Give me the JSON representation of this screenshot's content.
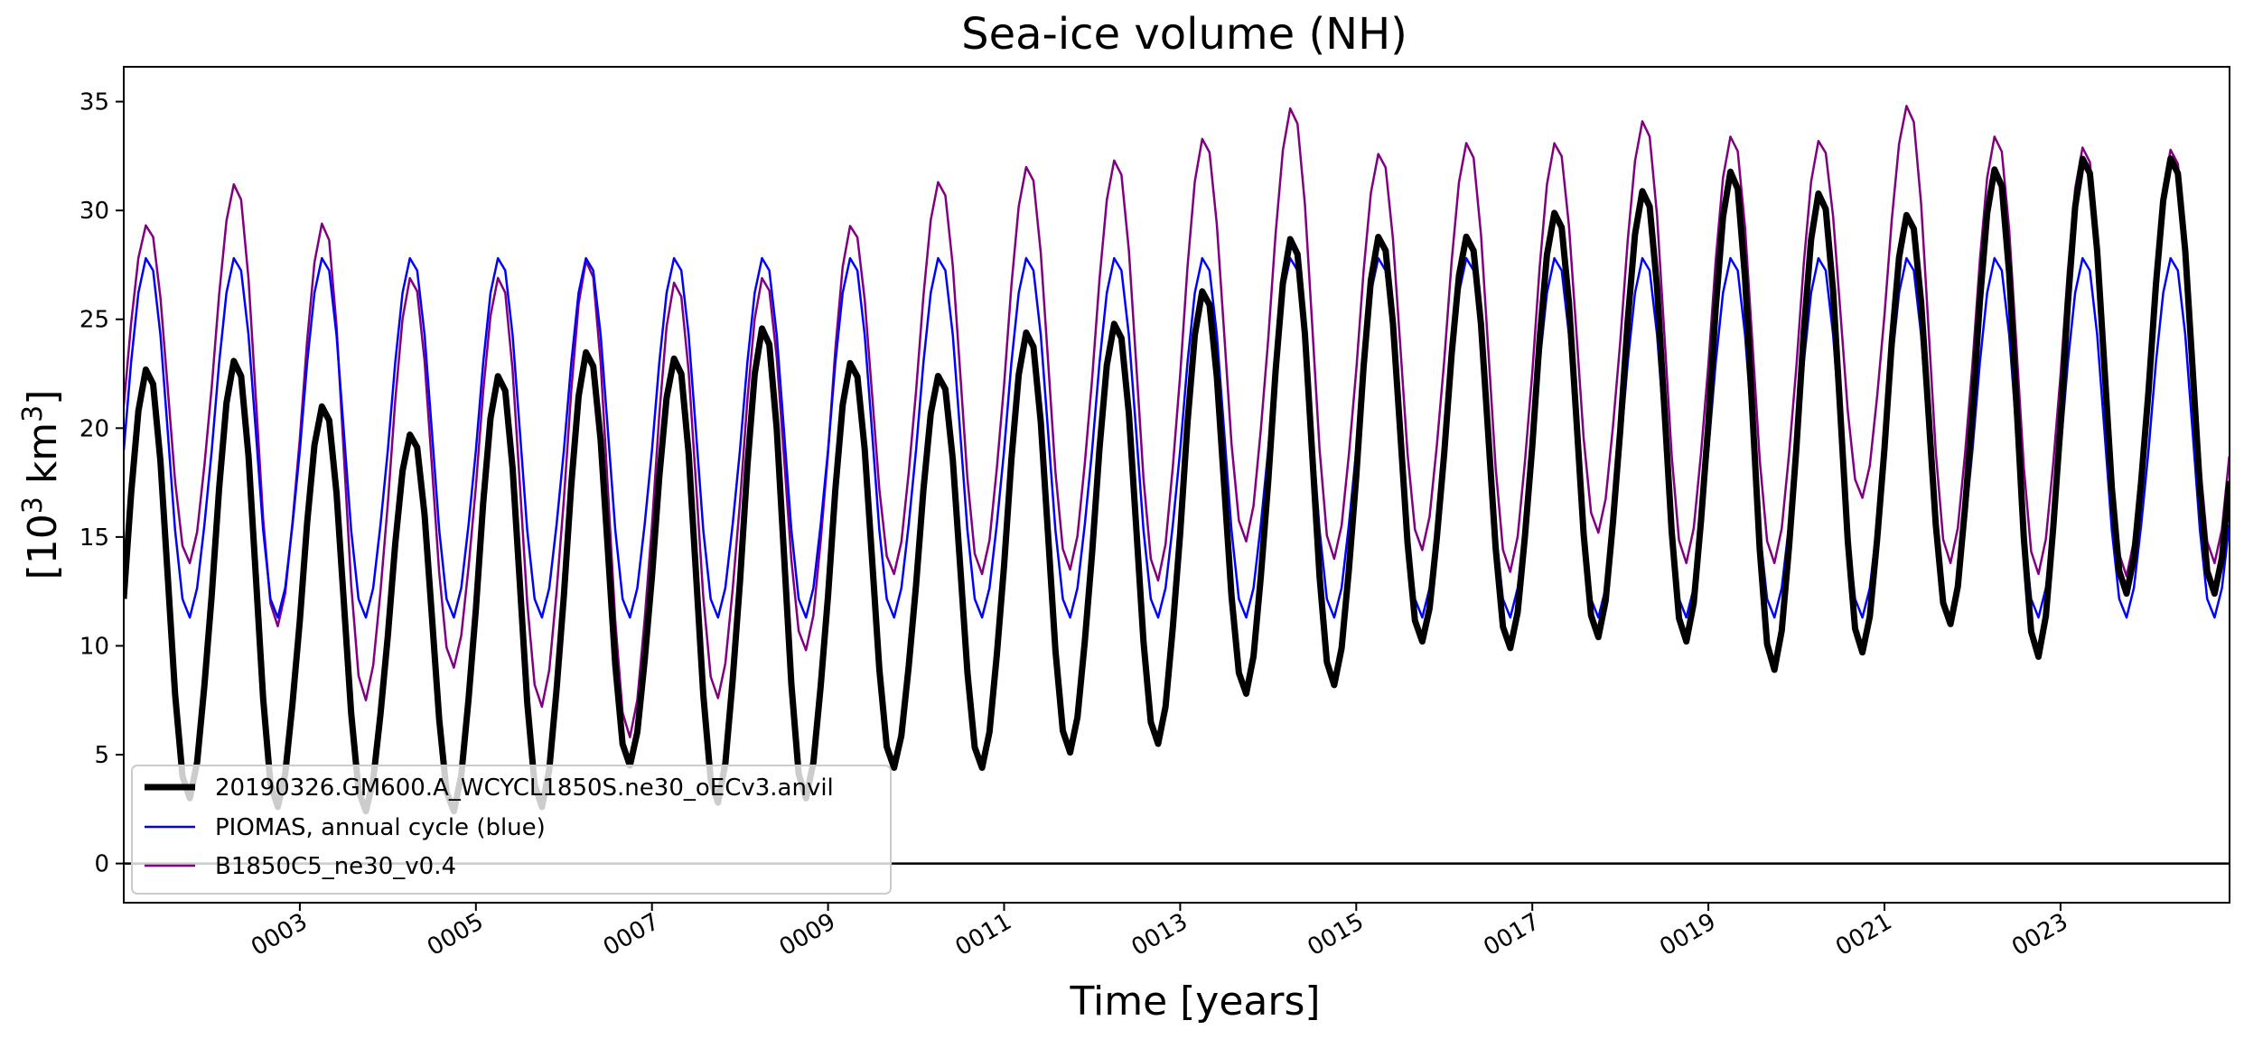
{
  "chart_data": {
    "type": "line",
    "title": "Sea-ice volume (NH)",
    "xlabel": "Time [years]",
    "ylabel": {
      "prefix": "[10",
      "exp1": "3",
      "mid": " km",
      "exp2": "3",
      "suffix": "]"
    },
    "xlim": [
      1.0,
      24.92
    ],
    "ylim": [
      -1.8,
      36.6
    ],
    "yticks": [
      0,
      5,
      10,
      15,
      20,
      25,
      30,
      35
    ],
    "xticks": [
      {
        "value": 3,
        "label": "0003"
      },
      {
        "value": 5,
        "label": "0005"
      },
      {
        "value": 7,
        "label": "0007"
      },
      {
        "value": 9,
        "label": "0009"
      },
      {
        "value": 11,
        "label": "0011"
      },
      {
        "value": 13,
        "label": "0013"
      },
      {
        "value": 15,
        "label": "0015"
      },
      {
        "value": 17,
        "label": "0017"
      },
      {
        "value": 19,
        "label": "0019"
      },
      {
        "value": 21,
        "label": "0021"
      },
      {
        "value": 23,
        "label": "0023"
      }
    ],
    "zero_line": 0,
    "legend_location": "lower-left",
    "series": [
      {
        "name": "20190326.GM600.A_WCYCL1850S.ne30_oECv3.anvil",
        "color": "#000000",
        "style": "thick",
        "annual_max": [
          22.8,
          23.2,
          21.1,
          19.8,
          22.5,
          23.6,
          23.3,
          24.7,
          23.1,
          22.5,
          24.5,
          24.9,
          26.4,
          28.8,
          28.9,
          28.9,
          30.0,
          31.0,
          31.9,
          30.9,
          29.9,
          32.0,
          32.5,
          32.5
        ],
        "annual_min": [
          3.0,
          2.6,
          2.4,
          2.4,
          2.6,
          4.5,
          2.8,
          3.0,
          4.4,
          4.4,
          5.1,
          5.5,
          7.8,
          8.2,
          10.2,
          9.9,
          10.4,
          10.2,
          8.9,
          9.7,
          11.0,
          9.5,
          12.4,
          12.4
        ]
      },
      {
        "name": "PIOMAS, annual cycle (blue)",
        "color": "#0000ff",
        "style": "thin",
        "annual_max": [
          27.9,
          27.9,
          27.9,
          27.9,
          27.9,
          27.9,
          27.9,
          27.9,
          27.9,
          27.9,
          27.9,
          27.9,
          27.9,
          27.9,
          27.9,
          27.9,
          27.9,
          27.9,
          27.9,
          27.9,
          27.9,
          27.9,
          27.9,
          27.9
        ],
        "annual_min": [
          11.3,
          11.3,
          11.3,
          11.3,
          11.3,
          11.3,
          11.3,
          11.3,
          11.3,
          11.3,
          11.3,
          11.3,
          11.3,
          11.3,
          11.3,
          11.3,
          11.3,
          11.3,
          11.3,
          11.3,
          11.3,
          11.3,
          11.3,
          11.3
        ]
      },
      {
        "name": "B1850C5_ne30_v0.4",
        "color": "#800080",
        "style": "thin",
        "annual_max": [
          29.4,
          31.3,
          29.5,
          27.0,
          27.0,
          27.8,
          26.8,
          27.0,
          29.4,
          31.4,
          32.1,
          32.4,
          33.4,
          34.8,
          32.7,
          33.2,
          33.2,
          34.2,
          33.5,
          33.3,
          34.9,
          33.5,
          33.0,
          32.9
        ],
        "annual_min": [
          13.8,
          10.9,
          7.5,
          9.0,
          7.2,
          5.8,
          7.6,
          9.8,
          13.3,
          13.3,
          13.5,
          13.0,
          14.8,
          14.0,
          14.4,
          13.4,
          15.2,
          13.8,
          13.8,
          16.8,
          13.8,
          13.3,
          13.2,
          13.8
        ]
      }
    ]
  }
}
